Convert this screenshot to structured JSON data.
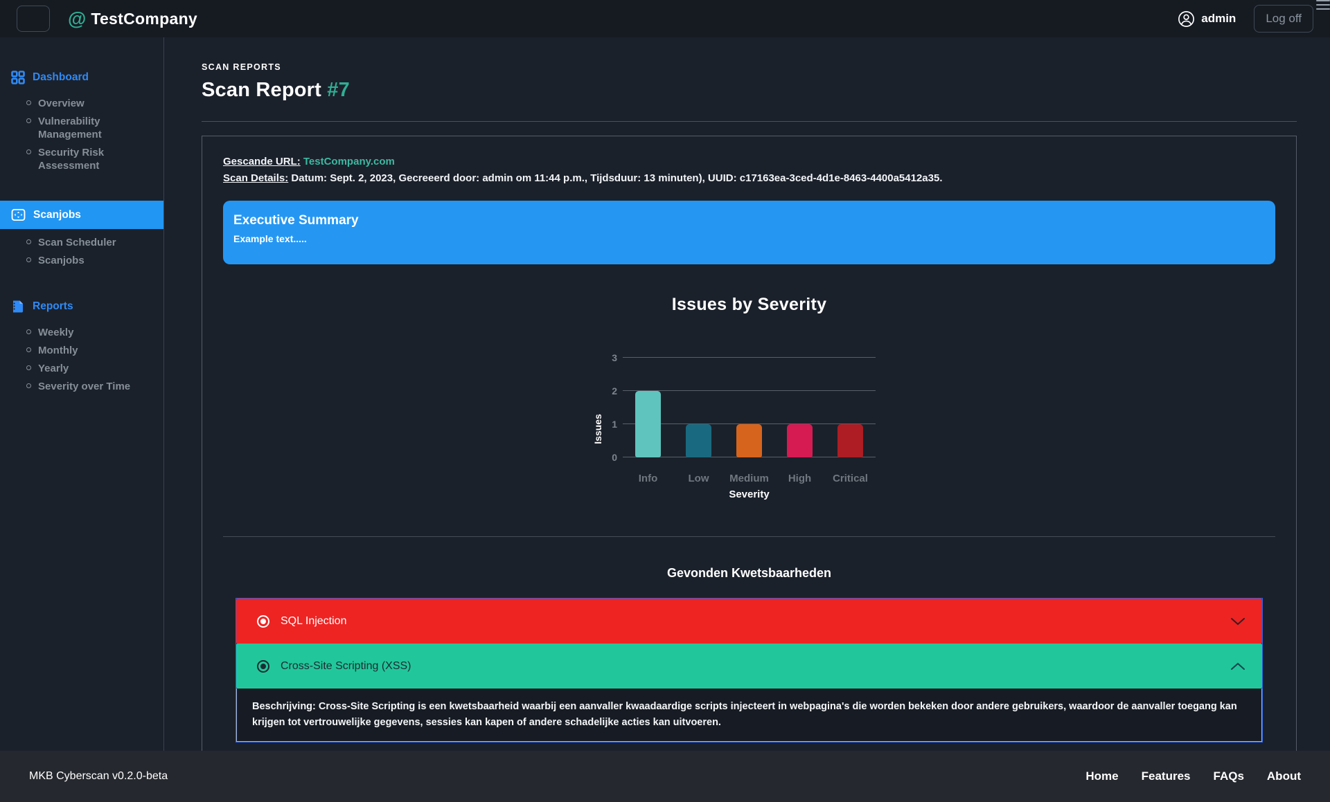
{
  "navbar": {
    "logo_at": "@",
    "logo_text": "TestCompany",
    "username": "admin",
    "logoff_label": "Log off"
  },
  "sidebar": {
    "sections": [
      {
        "label": "Dashboard",
        "icon": "grid-icon",
        "active": false,
        "items": [
          "Overview",
          "Vulnerability Management",
          "Security Risk Assessment"
        ]
      },
      {
        "label": "Scanjobs",
        "icon": "scan-icon",
        "active": true,
        "items": [
          "Scan Scheduler",
          "Scanjobs"
        ]
      },
      {
        "label": "Reports",
        "icon": "report-file-icon",
        "active": false,
        "items": [
          "Weekly",
          "Monthly",
          "Yearly",
          "Severity over Time"
        ]
      }
    ],
    "accent_color": "#2f8af5",
    "active_bg_color": "#2196f3"
  },
  "header": {
    "eyebrow": "SCAN REPORTS",
    "title": "Scan Report",
    "report_number": "#7",
    "accent_color": "#2fae93"
  },
  "scan_info": {
    "url_label": "Gescande URL:",
    "url_value": "TestCompany.com",
    "details_label": "Scan Details:",
    "details_value": "Datum: Sept. 2, 2023, Gecreeerd door: admin om 11:44 p.m., Tijdsduur: 13 minuten), UUID: c17163ea-3ced-4d1e-8463-4400a5412a35."
  },
  "executive_summary": {
    "title": "Executive Summary",
    "body": "Example text.....",
    "bg_color": "#2597f3"
  },
  "chart_data": {
    "type": "bar",
    "title": "Issues by Severity",
    "categories": [
      "Info",
      "Low",
      "Medium",
      "High",
      "Critical"
    ],
    "values": [
      2,
      1,
      1,
      1,
      1
    ],
    "colors": [
      "#5fc4be",
      "#196a80",
      "#d7641c",
      "#d61a52",
      "#ad1d23"
    ],
    "xlabel": "Severity",
    "ylabel": "Issues",
    "ylim": [
      0,
      3
    ],
    "yticks": [
      0,
      1,
      2,
      3
    ],
    "grid": true,
    "legend": false
  },
  "vulnerabilities": {
    "title": "Gevonden Kwetsbaarheden",
    "items": [
      {
        "name": "SQL Injection",
        "color": "#ee2423",
        "expanded": false
      },
      {
        "name": "Cross-Site Scripting (XSS)",
        "color": "#21c79a",
        "expanded": true,
        "description_label": "Beschrijving:",
        "description": "Cross-Site Scripting is een kwetsbaarheid waarbij een aanvaller kwaadaardige scripts injecteert in webpagina's die worden bekeken door andere gebruikers, waardoor de aanvaller toegang kan krijgen tot vertrouwelijke gegevens, sessies kan kapen of andere schadelijke acties kan uitvoeren."
      }
    ]
  },
  "footer": {
    "app_version": "MKB Cyberscan v0.2.0-beta",
    "links": [
      "Home",
      "Features",
      "FAQs",
      "About"
    ]
  }
}
